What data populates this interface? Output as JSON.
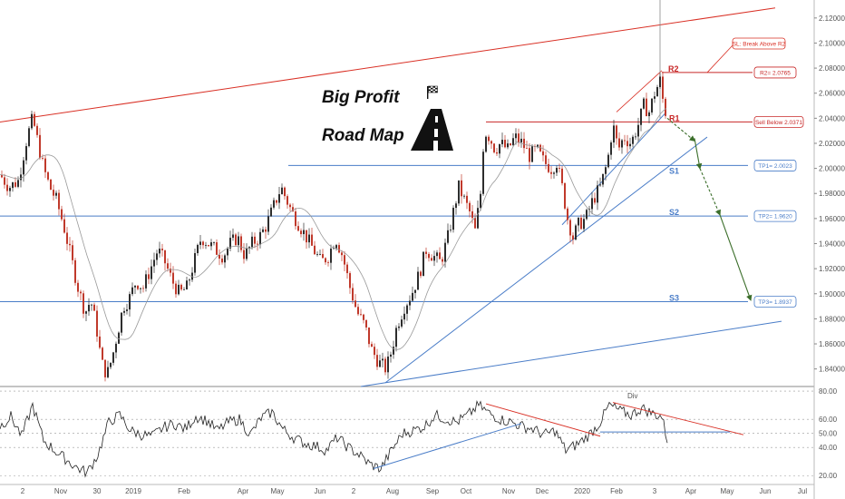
{
  "chart_data": [
    {
      "type": "candlestick",
      "title": "Big Profit Road Map",
      "title_line1": "Big Profit",
      "title_line2": "Road Map",
      "y_axis_ticks": [
        "2.12000",
        "2.10000",
        "2.08000",
        "2.06000",
        "2.04000",
        "2.02000",
        "2.00000",
        "1.98000",
        "1.96000",
        "1.94000",
        "1.92000",
        "1.90000",
        "1.88000",
        "1.86000",
        "1.84000"
      ],
      "ylim": [
        1.826,
        2.13
      ],
      "x_axis_ticks": [
        "2",
        "Nov",
        "30",
        "2019",
        "Feb",
        "Apr",
        "May",
        "Jun",
        "2",
        "Aug",
        "Sep",
        "Oct",
        "Nov",
        "Dec",
        "2020",
        "Feb",
        "3",
        "Apr",
        "May",
        "Jun",
        "Jul"
      ],
      "close_path": [
        [
          0,
          1.995
        ],
        [
          10,
          1.985
        ],
        [
          20,
          1.99
        ],
        [
          30,
          2.025
        ],
        [
          36,
          2.04
        ],
        [
          42,
          2.02
        ],
        [
          48,
          2.0
        ],
        [
          55,
          1.985
        ],
        [
          62,
          1.975
        ],
        [
          70,
          1.955
        ],
        [
          78,
          1.93
        ],
        [
          86,
          1.905
        ],
        [
          94,
          1.885
        ],
        [
          100,
          1.895
        ],
        [
          106,
          1.875
        ],
        [
          112,
          1.845
        ],
        [
          118,
          1.835
        ],
        [
          124,
          1.85
        ],
        [
          130,
          1.87
        ],
        [
          136,
          1.89
        ],
        [
          142,
          1.895
        ],
        [
          150,
          1.91
        ],
        [
          158,
          1.905
        ],
        [
          166,
          1.92
        ],
        [
          174,
          1.935
        ],
        [
          182,
          1.925
        ],
        [
          190,
          1.91
        ],
        [
          198,
          1.9
        ],
        [
          206,
          1.905
        ],
        [
          214,
          1.925
        ],
        [
          222,
          1.945
        ],
        [
          230,
          1.94
        ],
        [
          238,
          1.935
        ],
        [
          246,
          1.93
        ],
        [
          254,
          1.94
        ],
        [
          262,
          1.945
        ],
        [
          270,
          1.93
        ],
        [
          278,
          1.94
        ],
        [
          286,
          1.945
        ],
        [
          294,
          1.955
        ],
        [
          302,
          1.97
        ],
        [
          310,
          1.985
        ],
        [
          316,
          1.975
        ],
        [
          322,
          1.965
        ],
        [
          330,
          1.955
        ],
        [
          338,
          1.945
        ],
        [
          346,
          1.935
        ],
        [
          354,
          1.925
        ],
        [
          362,
          1.93
        ],
        [
          370,
          1.945
        ],
        [
          378,
          1.93
        ],
        [
          386,
          1.905
        ],
        [
          394,
          1.885
        ],
        [
          402,
          1.875
        ],
        [
          410,
          1.855
        ],
        [
          418,
          1.845
        ],
        [
          426,
          1.84
        ],
        [
          432,
          1.855
        ],
        [
          438,
          1.875
        ],
        [
          446,
          1.89
        ],
        [
          454,
          1.9
        ],
        [
          462,
          1.915
        ],
        [
          470,
          1.935
        ],
        [
          478,
          1.93
        ],
        [
          486,
          1.925
        ],
        [
          494,
          1.945
        ],
        [
          500,
          1.965
        ],
        [
          506,
          1.985
        ],
        [
          512,
          1.975
        ],
        [
          518,
          1.965
        ],
        [
          524,
          1.95
        ],
        [
          530,
          1.98
        ],
        [
          534,
          2.03
        ],
        [
          540,
          2.025
        ],
        [
          546,
          2.015
        ],
        [
          552,
          2.02
        ],
        [
          560,
          2.015
        ],
        [
          568,
          2.025
        ],
        [
          576,
          2.02
        ],
        [
          584,
          2.01
        ],
        [
          592,
          2.015
        ],
        [
          600,
          2.005
        ],
        [
          608,
          2.0
        ],
        [
          614,
          2.005
        ],
        [
          620,
          1.985
        ],
        [
          626,
          1.96
        ],
        [
          632,
          1.945
        ],
        [
          638,
          1.955
        ],
        [
          646,
          1.96
        ],
        [
          654,
          1.975
        ],
        [
          662,
          1.985
        ],
        [
          670,
          2.005
        ],
        [
          676,
          2.035
        ],
        [
          682,
          2.015
        ],
        [
          688,
          2.025
        ],
        [
          696,
          2.02
        ],
        [
          704,
          2.035
        ],
        [
          710,
          2.05
        ],
        [
          716,
          2.045
        ],
        [
          722,
          2.06
        ],
        [
          728,
          2.07
        ],
        [
          732,
          2.05
        ],
        [
          736,
          2.04
        ]
      ],
      "horizontal_levels": [
        {
          "name": "S1",
          "value": 2.0023,
          "color": "#4a7dc8",
          "label": "TP1= 2.0023"
        },
        {
          "name": "S2",
          "value": 1.962,
          "color": "#4a7dc8",
          "label": "TP2= 1.9620"
        },
        {
          "name": "S3",
          "value": 1.8937,
          "color": "#4a7dc8",
          "label": "TP3= 1.8937"
        },
        {
          "name": "R1",
          "value": 2.0371,
          "color": "#c82828",
          "label": "Sell Below 2.0371"
        },
        {
          "name": "R2",
          "value": 2.0765,
          "color": "#c82828",
          "label": "R2= 2.0765"
        }
      ],
      "annotation_sl": "SL: Break Above R2",
      "colors": {
        "up": "#2d2d2d",
        "down": "#c0392b",
        "support": "#4a7dc8",
        "resistance": "#d93025",
        "arrow": "#3b6e2a"
      }
    },
    {
      "type": "line",
      "name": "oscillator",
      "y_axis_ticks": [
        "80.00",
        "60.00",
        "50.00",
        "40.00",
        "20.00"
      ],
      "ylim": [
        15,
        82
      ],
      "annotation": "Div",
      "values_path": [
        [
          0,
          55
        ],
        [
          12,
          62
        ],
        [
          24,
          48
        ],
        [
          36,
          70
        ],
        [
          48,
          45
        ],
        [
          60,
          38
        ],
        [
          72,
          32
        ],
        [
          84,
          26
        ],
        [
          96,
          22
        ],
        [
          108,
          35
        ],
        [
          120,
          58
        ],
        [
          132,
          63
        ],
        [
          144,
          52
        ],
        [
          156,
          49
        ],
        [
          168,
          48
        ],
        [
          180,
          54
        ],
        [
          192,
          57
        ],
        [
          204,
          53
        ],
        [
          216,
          62
        ],
        [
          228,
          59
        ],
        [
          240,
          52
        ],
        [
          252,
          58
        ],
        [
          264,
          60
        ],
        [
          276,
          49
        ],
        [
          288,
          61
        ],
        [
          300,
          65
        ],
        [
          312,
          53
        ],
        [
          324,
          47
        ],
        [
          336,
          43
        ],
        [
          348,
          41
        ],
        [
          360,
          38
        ],
        [
          372,
          47
        ],
        [
          384,
          40
        ],
        [
          396,
          35
        ],
        [
          408,
          28
        ],
        [
          420,
          25
        ],
        [
          432,
          38
        ],
        [
          444,
          50
        ],
        [
          456,
          52
        ],
        [
          468,
          55
        ],
        [
          480,
          63
        ],
        [
          492,
          60
        ],
        [
          504,
          58
        ],
        [
          516,
          63
        ],
        [
          528,
          70
        ],
        [
          540,
          64
        ],
        [
          552,
          60
        ],
        [
          564,
          58
        ],
        [
          576,
          55
        ],
        [
          588,
          53
        ],
        [
          600,
          49
        ],
        [
          612,
          52
        ],
        [
          624,
          38
        ],
        [
          636,
          42
        ],
        [
          648,
          48
        ],
        [
          660,
          56
        ],
        [
          672,
          70
        ],
        [
          684,
          66
        ],
        [
          696,
          63
        ],
        [
          708,
          68
        ],
        [
          720,
          64
        ],
        [
          730,
          62
        ],
        [
          736,
          45
        ]
      ]
    }
  ]
}
